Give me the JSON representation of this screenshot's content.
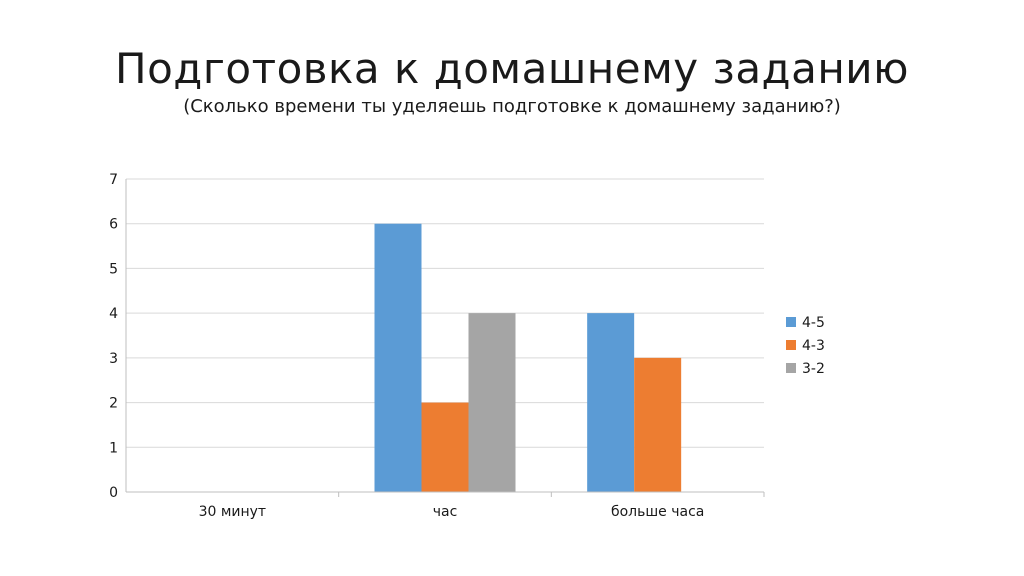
{
  "slide": {
    "title": "Подготовка к домашнему заданию",
    "subtitle": "(Сколько времени ты уделяешь подготовке к домашнему заданию?)"
  },
  "chart_data": {
    "type": "bar",
    "categories": [
      "30 минут",
      "час",
      "больше часа"
    ],
    "series": [
      {
        "name": "4-5",
        "color": "#5B9BD5",
        "values": [
          0,
          6,
          4
        ]
      },
      {
        "name": "4-3",
        "color": "#ED7D31",
        "values": [
          0,
          2,
          3
        ]
      },
      {
        "name": "3-2",
        "color": "#A5A5A5",
        "values": [
          0,
          4,
          0
        ]
      }
    ],
    "title": "Подготовка к домашнему заданию",
    "subtitle": "(Сколько времени ты уделяешь подготовке к домашнему заданию?)",
    "xlabel": "",
    "ylabel": "",
    "ylim": [
      0,
      7
    ],
    "yticks": [
      "0",
      "1",
      "2",
      "3",
      "4",
      "5",
      "6",
      "7"
    ],
    "grid": true,
    "legend_position": "right"
  }
}
